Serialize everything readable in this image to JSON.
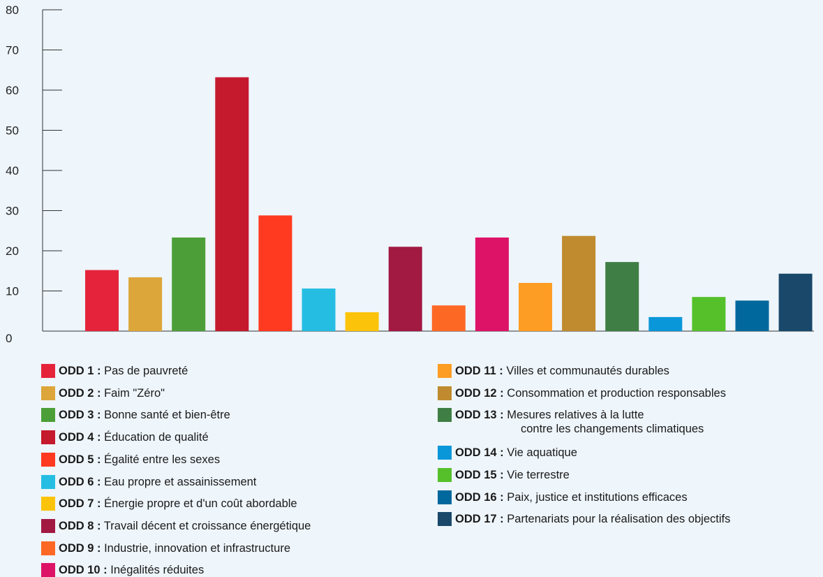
{
  "chart_data": {
    "type": "bar",
    "title": "",
    "xlabel": "",
    "ylabel": "",
    "ylim": [
      0,
      80
    ],
    "yticks": [
      0,
      10,
      20,
      30,
      40,
      50,
      60,
      70,
      80
    ],
    "grid": false,
    "legend_position": "bottom",
    "categories": [
      "ODD 1",
      "ODD 2",
      "ODD 3",
      "ODD 4",
      "ODD 5",
      "ODD 6",
      "ODD 7",
      "ODD 8",
      "ODD 9",
      "ODD 10",
      "ODD 11",
      "ODD 12",
      "ODD 13",
      "ODD 14",
      "ODD 15",
      "ODD 16",
      "ODD 17"
    ],
    "values": [
      15.2,
      13.4,
      23.3,
      63.2,
      28.8,
      10.6,
      4.7,
      21,
      6.4,
      23.3,
      12,
      23.7,
      17.2,
      3.5,
      8.5,
      7.6,
      14.3
    ],
    "colors": [
      "#e5243b",
      "#dda63a",
      "#4c9f38",
      "#c5192d",
      "#ff3a21",
      "#26bde2",
      "#fcc30b",
      "#a21942",
      "#fd6925",
      "#dd1367",
      "#fd9d24",
      "#bf8b2e",
      "#3f7e44",
      "#0a97d9",
      "#56c02b",
      "#00689d",
      "#19486a"
    ]
  },
  "legend": {
    "left": [
      {
        "code": "ODD 1 :",
        "label": "Pas de pauvreté",
        "color": "#e5243b"
      },
      {
        "code": "ODD 2 :",
        "label": "Faim \"Zéro\"",
        "color": "#dda63a"
      },
      {
        "code": "ODD 3 :",
        "label": "Bonne santé et bien-être",
        "color": "#4c9f38"
      },
      {
        "code": "ODD 4 :",
        "label": "Éducation de qualité",
        "color": "#c5192d"
      },
      {
        "code": "ODD 5 :",
        "label": "Égalité entre les sexes",
        "color": "#ff3a21"
      },
      {
        "code": "ODD 6 :",
        "label": "Eau propre et assainissement",
        "color": "#26bde2"
      },
      {
        "code": "ODD 7 :",
        "label": "Énergie propre et d'un coût abordable",
        "color": "#fcc30b"
      },
      {
        "code": "ODD 8 :",
        "label": "Travail décent et croissance énergétique",
        "color": "#a21942"
      },
      {
        "code": "ODD 9 :",
        "label": "Industrie, innovation et infrastructure",
        "color": "#fd6925"
      },
      {
        "code": "ODD 10 :",
        "label": "Inégalités réduites",
        "color": "#dd1367"
      }
    ],
    "right": [
      {
        "code": "ODD 11 :",
        "label": "Villes et communautés durables",
        "color": "#fd9d24"
      },
      {
        "code": "ODD 12 :",
        "label": "Consommation et production responsables",
        "color": "#bf8b2e"
      },
      {
        "code": "ODD 13 :",
        "label": "Mesures relatives à la lutte",
        "label2": "contre les changements climatiques",
        "color": "#3f7e44"
      },
      {
        "code": "ODD 14 :",
        "label": "Vie aquatique",
        "color": "#0a97d9"
      },
      {
        "code": "ODD 15 :",
        "label": "Vie terrestre",
        "color": "#56c02b"
      },
      {
        "code": "ODD 16 :",
        "label": "Paix, justice et institutions efficaces",
        "color": "#00689d"
      },
      {
        "code": "ODD 17 :",
        "label": "Partenariats pour la réalisation des objectifs",
        "color": "#19486a"
      }
    ]
  }
}
